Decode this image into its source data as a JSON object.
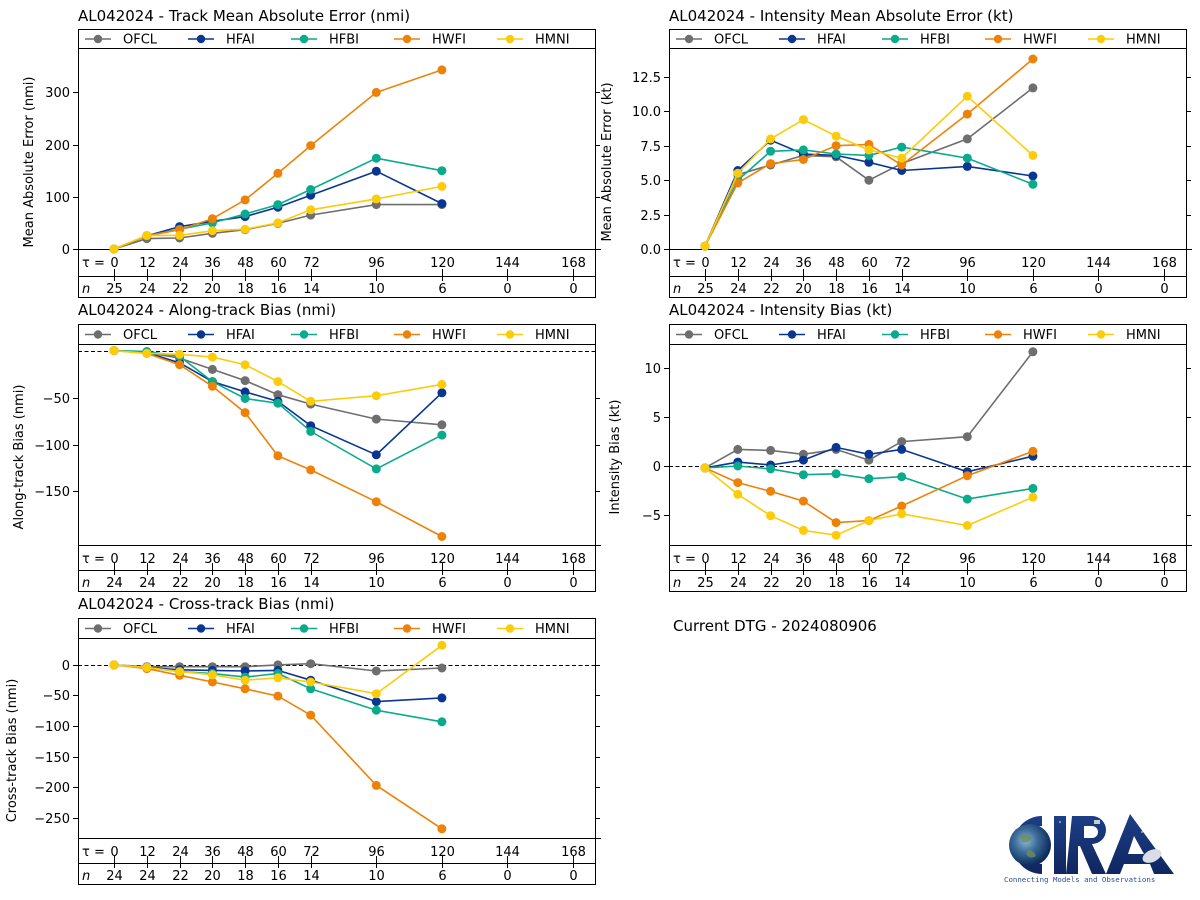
{
  "footer": {
    "dtg_label": "Current DTG - 2024080906"
  },
  "logo": {
    "name": "CIRA",
    "tagline": "Connecting Models and Observations"
  },
  "colors": {
    "OFCL": "#6e6e6e",
    "HFAI": "#0a3693",
    "HFBI": "#0aaa8c",
    "HWFI": "#ee8208",
    "HMNI": "#fccc0a"
  },
  "chart_data": [
    {
      "id": "track-mae",
      "type": "line",
      "title": "AL042024 - Track Mean Absolute Error (nmi)",
      "ylabel": "Mean Absolute Error (nmi)",
      "xlabel_prefix": "τ = ",
      "n_prefix": "n",
      "x_ticks": [
        0,
        12,
        24,
        36,
        48,
        60,
        72,
        96,
        120,
        144,
        168
      ],
      "n_counts": [
        25,
        24,
        22,
        20,
        18,
        16,
        14,
        10,
        6,
        0,
        0
      ],
      "ylim": [
        0,
        385
      ],
      "y_ticks": [
        0,
        100,
        200,
        300
      ],
      "y_tick_labels": [
        "0",
        "100",
        "200",
        "300"
      ],
      "zero_line": false,
      "legend": "top",
      "x": [
        0,
        12,
        24,
        36,
        48,
        60,
        72,
        96,
        120
      ],
      "series": [
        {
          "name": "OFCL",
          "values": [
            0,
            20,
            21,
            30,
            37,
            49,
            65,
            85,
            85
          ]
        },
        {
          "name": "HFAI",
          "values": [
            0,
            25,
            43,
            53,
            62,
            80,
            103,
            149,
            87
          ]
        },
        {
          "name": "HFBI",
          "values": [
            0,
            25,
            38,
            50,
            67,
            85,
            114,
            174,
            150
          ]
        },
        {
          "name": "HWFI",
          "values": [
            0,
            25,
            37,
            58,
            94,
            145,
            198,
            300,
            343
          ]
        },
        {
          "name": "HMNI",
          "values": [
            0,
            26,
            26,
            35,
            38,
            50,
            75,
            96,
            120
          ]
        }
      ]
    },
    {
      "id": "intensity-mae",
      "type": "line",
      "title": "AL042024 - Intensity Mean Absolute Error (kt)",
      "ylabel": "Mean Absolute Error (kt)",
      "xlabel_prefix": "τ = ",
      "n_prefix": "n",
      "x_ticks": [
        0,
        12,
        24,
        36,
        48,
        60,
        72,
        96,
        120,
        144,
        168
      ],
      "n_counts": [
        25,
        24,
        22,
        20,
        18,
        16,
        14,
        10,
        6,
        0,
        0
      ],
      "ylim": [
        0,
        14.6
      ],
      "y_ticks": [
        0,
        2.5,
        5,
        7.5,
        10,
        12.5
      ],
      "y_tick_labels": [
        "0.0",
        "2.5",
        "5.0",
        "7.5",
        "10.0",
        "12.5"
      ],
      "zero_line": false,
      "legend": "top",
      "x": [
        0,
        12,
        24,
        36,
        48,
        60,
        72,
        96,
        120
      ],
      "series": [
        {
          "name": "OFCL",
          "values": [
            0.2,
            5.4,
            6.1,
            6.8,
            6.7,
            5.0,
            6.2,
            8.0,
            11.7
          ]
        },
        {
          "name": "HFAI",
          "values": [
            0.2,
            5.7,
            7.9,
            6.9,
            6.8,
            6.3,
            5.7,
            6.0,
            5.3
          ]
        },
        {
          "name": "HFBI",
          "values": [
            0.2,
            5.0,
            7.1,
            7.2,
            6.9,
            6.8,
            7.4,
            6.6,
            4.7
          ]
        },
        {
          "name": "HWFI",
          "values": [
            0.2,
            4.8,
            6.2,
            6.5,
            7.5,
            7.6,
            6.1,
            9.8,
            13.8
          ]
        },
        {
          "name": "HMNI",
          "values": [
            0.2,
            5.5,
            8.0,
            9.4,
            8.2,
            7.2,
            6.6,
            11.1,
            6.8
          ]
        }
      ]
    },
    {
      "id": "along-track-bias",
      "type": "line",
      "title": "AL042024 - Along-track Bias (nmi)",
      "ylabel": "Along-track Bias (nmi)",
      "xlabel_prefix": "τ = ",
      "n_prefix": "n",
      "x_ticks": [
        0,
        12,
        24,
        36,
        48,
        60,
        72,
        96,
        120,
        144,
        168
      ],
      "n_counts": [
        24,
        24,
        22,
        20,
        18,
        16,
        14,
        10,
        6,
        0,
        0
      ],
      "ylim": [
        -207,
        7
      ],
      "y_ticks": [
        -50,
        -100,
        -150
      ],
      "y_tick_labels": [
        "−50",
        "−100",
        "−150"
      ],
      "zero_line": true,
      "legend": "top",
      "x": [
        0,
        12,
        24,
        36,
        48,
        60,
        72,
        96,
        120
      ],
      "series": [
        {
          "name": "OFCL",
          "values": [
            0,
            -2,
            -8,
            -20,
            -32,
            -47,
            -57,
            -73,
            -79
          ]
        },
        {
          "name": "HFAI",
          "values": [
            0,
            -2,
            -13,
            -33,
            -44,
            -54,
            -80,
            -111,
            -45
          ]
        },
        {
          "name": "HFBI",
          "values": [
            0,
            -1,
            -6,
            -33,
            -51,
            -56,
            -86,
            -126,
            -90
          ]
        },
        {
          "name": "HWFI",
          "values": [
            0,
            -3,
            -15,
            -38,
            -66,
            -112,
            -127,
            -161,
            -198
          ]
        },
        {
          "name": "HMNI",
          "values": [
            0,
            -3,
            -4,
            -7,
            -15,
            -33,
            -54,
            -48,
            -36
          ]
        }
      ]
    },
    {
      "id": "intensity-bias",
      "type": "line",
      "title": "AL042024 - Intensity Bias (kt)",
      "ylabel": "Intensity Bias (kt)",
      "xlabel_prefix": "τ = ",
      "n_prefix": "n",
      "x_ticks": [
        0,
        12,
        24,
        36,
        48,
        60,
        72,
        96,
        120,
        144,
        168
      ],
      "n_counts": [
        25,
        24,
        22,
        20,
        18,
        16,
        14,
        10,
        6,
        0,
        0
      ],
      "ylim": [
        -8.1,
        12.5
      ],
      "y_ticks": [
        -5,
        0,
        5,
        10
      ],
      "y_tick_labels": [
        "−5",
        "0",
        "5",
        "10"
      ],
      "zero_line": true,
      "legend": "top",
      "x": [
        0,
        12,
        24,
        36,
        48,
        60,
        72,
        96,
        120
      ],
      "series": [
        {
          "name": "OFCL",
          "values": [
            -0.2,
            1.7,
            1.6,
            1.2,
            1.7,
            0.6,
            2.5,
            3.0,
            11.7
          ]
        },
        {
          "name": "HFAI",
          "values": [
            -0.2,
            0.4,
            0.1,
            0.6,
            1.9,
            1.2,
            1.7,
            -0.6,
            1.0
          ]
        },
        {
          "name": "HFBI",
          "values": [
            -0.2,
            0.0,
            -0.3,
            -0.9,
            -0.8,
            -1.3,
            -1.1,
            -3.4,
            -2.3
          ]
        },
        {
          "name": "HWFI",
          "values": [
            -0.2,
            -1.7,
            -2.6,
            -3.6,
            -5.8,
            -5.6,
            -4.1,
            -1.0,
            1.5
          ]
        },
        {
          "name": "HMNI",
          "values": [
            -0.2,
            -2.9,
            -5.1,
            -6.6,
            -7.1,
            -5.6,
            -4.9,
            -6.1,
            -3.2
          ]
        }
      ]
    },
    {
      "id": "cross-track-bias",
      "type": "line",
      "title": "AL042024 - Cross-track Bias (nmi)",
      "ylabel": "Cross-track Bias (nmi)",
      "xlabel_prefix": "τ = ",
      "n_prefix": "n",
      "x_ticks": [
        0,
        12,
        24,
        36,
        48,
        60,
        72,
        96,
        120,
        144,
        168
      ],
      "n_counts": [
        24,
        24,
        22,
        20,
        18,
        16,
        14,
        10,
        6,
        0,
        0
      ],
      "ylim": [
        -283,
        44
      ],
      "y_ticks": [
        0,
        -50,
        -100,
        -150,
        -200,
        -250
      ],
      "y_tick_labels": [
        "0",
        "−50",
        "−100",
        "−150",
        "−200",
        "−250"
      ],
      "zero_line": true,
      "legend": "top",
      "x": [
        0,
        12,
        24,
        36,
        48,
        60,
        72,
        96,
        120
      ],
      "series": [
        {
          "name": "OFCL",
          "values": [
            0,
            -3,
            -3,
            -3,
            -3,
            0,
            2,
            -10,
            -5
          ]
        },
        {
          "name": "HFAI",
          "values": [
            0,
            -4,
            -8,
            -9,
            -10,
            -9,
            -25,
            -60,
            -54
          ]
        },
        {
          "name": "HFBI",
          "values": [
            0,
            -4,
            -11,
            -14,
            -20,
            -14,
            -39,
            -74,
            -93
          ]
        },
        {
          "name": "HWFI",
          "values": [
            0,
            -6,
            -17,
            -28,
            -39,
            -51,
            -82,
            -197,
            -268
          ]
        },
        {
          "name": "HMNI",
          "values": [
            0,
            -4,
            -11,
            -16,
            -25,
            -21,
            -28,
            -47,
            32
          ]
        }
      ]
    }
  ]
}
